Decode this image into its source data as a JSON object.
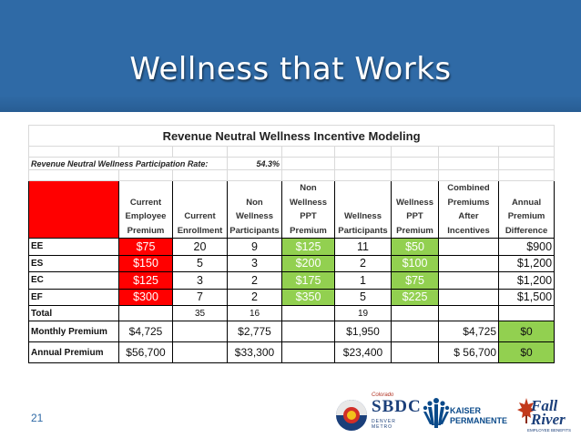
{
  "slide": {
    "title": "Wellness that Works",
    "page_number": "21"
  },
  "table": {
    "title": "Revenue Neutral Wellness Incentive Modeling",
    "rate_label": "Revenue Neutral Wellness Participation Rate:",
    "rate_value": "54.3%",
    "headers": [
      "",
      "Current Employee Premium",
      "Current Enrollment",
      "Non Wellness Participants",
      "Non Wellness PPT Premium",
      "Wellness Participants",
      "Wellness PPT Premium",
      "Combined Premiums After Incentives",
      "Annual Premium Difference"
    ],
    "rows": [
      {
        "tier": "EE",
        "current_premium": "$75",
        "enrollment": "20",
        "non_wellness": "9",
        "non_wellness_premium": "$125",
        "wellness": "11",
        "wellness_premium": "$50",
        "combined": "",
        "difference": "$900"
      },
      {
        "tier": "ES",
        "current_premium": "$150",
        "enrollment": "5",
        "non_wellness": "3",
        "non_wellness_premium": "$200",
        "wellness": "2",
        "wellness_premium": "$100",
        "combined": "",
        "difference": "$1,200"
      },
      {
        "tier": "EC",
        "current_premium": "$125",
        "enrollment": "3",
        "non_wellness": "2",
        "non_wellness_premium": "$175",
        "wellness": "1",
        "wellness_premium": "$75",
        "combined": "",
        "difference": "$1,200"
      },
      {
        "tier": "EF",
        "current_premium": "$300",
        "enrollment": "7",
        "non_wellness": "2",
        "non_wellness_premium": "$350",
        "wellness": "5",
        "wellness_premium": "$225",
        "combined": "",
        "difference": "$1,500"
      }
    ],
    "total": {
      "label": "Total",
      "enrollment": "35",
      "non_wellness": "16",
      "wellness": "19"
    },
    "monthly": {
      "label": "Monthly Premium",
      "current": "$4,725",
      "non_wellness": "$2,775",
      "wellness": "$1,950",
      "combined": "$4,725",
      "difference": "$0"
    },
    "annual": {
      "label": "Annual Premium",
      "current": "$56,700",
      "non_wellness": "$33,300",
      "wellness": "$23,400",
      "combined": "$ 56,700",
      "difference": "$0"
    }
  },
  "logos": {
    "sbdc": "SBDC",
    "sbdc_state": "Colorado",
    "sbdc_sub": "DENVER METRO",
    "kaiser_line1": "KAISER",
    "kaiser_line2": "PERMANENTE",
    "fall_line1": "Fall",
    "fall_line2": "River",
    "fall_sub": "EMPLOYEE BENEFITS"
  },
  "colors": {
    "header_blue": "#2f6aa6",
    "red_cell": "#ff0000",
    "green_cell": "#92d050"
  }
}
